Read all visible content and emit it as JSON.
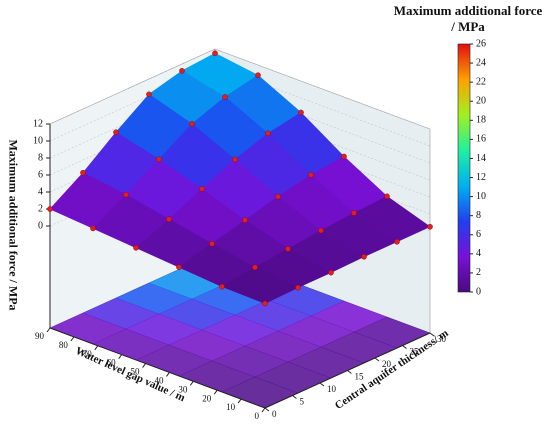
{
  "chart_data": {
    "type": "surface3d",
    "colorbar_title": [
      "Maximum additional force",
      "/ MPa"
    ],
    "xlabel": "Water level gap value / m",
    "ylabel": "Central aquifer thickness/ m",
    "zlabel": "Maximum additional force / MPa",
    "x": [
      0,
      18,
      36,
      54,
      72,
      90
    ],
    "y": [
      0,
      6,
      12,
      18,
      24,
      30
    ],
    "z": [
      [
        0.3,
        0.4,
        0.8,
        1.2,
        1.6,
        2.0
      ],
      [
        0.4,
        0.9,
        1.8,
        2.8,
        3.8,
        4.5
      ],
      [
        0.4,
        1.3,
        2.8,
        4.6,
        6.2,
        7.5
      ],
      [
        0.5,
        1.7,
        3.8,
        6.3,
        8.6,
        10.2
      ],
      [
        0.5,
        2.0,
        4.6,
        7.6,
        10.0,
        11.2
      ],
      [
        0.5,
        2.2,
        5.0,
        8.3,
        10.8,
        11.5
      ]
    ],
    "xlim": [
      0,
      90
    ],
    "xticks": [
      0,
      10,
      20,
      30,
      40,
      50,
      60,
      70,
      80,
      90
    ],
    "ylim": [
      0,
      30
    ],
    "yticks": [
      0,
      5,
      10,
      15,
      20,
      25,
      30
    ],
    "zlim": [
      -12,
      12
    ],
    "zticks": [
      0,
      2,
      4,
      6,
      8,
      10,
      12
    ],
    "clim": [
      0,
      26
    ],
    "cticks": [
      0,
      2,
      4,
      6,
      8,
      10,
      12,
      14,
      16,
      18,
      20,
      22,
      24,
      26
    ],
    "colormap": [
      "#4a0a80",
      "#7a10d8",
      "#2040f0",
      "#00b0f0",
      "#20f0a0",
      "#a0f020",
      "#ffa000",
      "#e01010"
    ],
    "point_color": "#e02020",
    "floor_projection": true
  }
}
